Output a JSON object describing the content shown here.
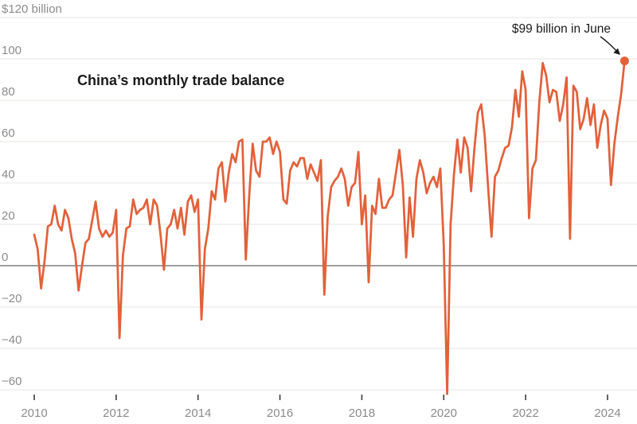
{
  "title": "China’s monthly trade balance",
  "annotation": {
    "text": "$99 billion in June",
    "points_to": {
      "month": "2024-06",
      "value": 99
    }
  },
  "colors": {
    "line": "#E2613B",
    "endpoint_dot": "#E2613B",
    "grid": "#E5E4E2",
    "zero_line": "#3B3B3B",
    "axis_text": "#8B8B8B",
    "tick_mark": "#3B3B3B",
    "title_text": "#1A1A1A",
    "annotation_text": "#1A1A1A",
    "background": "#FFFFFF"
  },
  "chart_data": {
    "type": "line",
    "title": "China’s monthly trade balance",
    "unit": "USD billion, monthly",
    "x_start": "2010-01",
    "x_end": "2024-06",
    "xlabel": "",
    "ylabel": "$ billion",
    "ylim": [
      -68,
      124
    ],
    "grid": "horizontal",
    "legend": "none",
    "y_ticks": [
      {
        "value": 120,
        "label": "$120 billion"
      },
      {
        "value": 100,
        "label": "100"
      },
      {
        "value": 80,
        "label": "80"
      },
      {
        "value": 60,
        "label": "60"
      },
      {
        "value": 40,
        "label": "40"
      },
      {
        "value": 20,
        "label": "20"
      },
      {
        "value": 0,
        "label": "0"
      },
      {
        "value": -20,
        "label": "−20"
      },
      {
        "value": -40,
        "label": "−40"
      },
      {
        "value": -60,
        "label": "−60"
      }
    ],
    "x_ticks": [
      {
        "year": 2010,
        "label": "2010"
      },
      {
        "year": 2012,
        "label": "2012"
      },
      {
        "year": 2014,
        "label": "2014"
      },
      {
        "year": 2016,
        "label": "2016"
      },
      {
        "year": 2018,
        "label": "2018"
      },
      {
        "year": 2020,
        "label": "2020"
      },
      {
        "year": 2022,
        "label": "2022"
      },
      {
        "year": 2024,
        "label": "2024"
      }
    ],
    "annotation": {
      "text": "$99 billion in June",
      "x": "2024-06",
      "y": 99
    },
    "series": [
      {
        "name": "China monthly trade balance ($ billion)",
        "color": "#E2613B",
        "start": "2010-01",
        "frequency": "monthly",
        "values": [
          15,
          8,
          -11,
          2,
          19,
          20,
          29,
          20,
          17,
          27,
          23,
          13,
          6,
          -12,
          0,
          11,
          13,
          22,
          31,
          18,
          14,
          17,
          14,
          16,
          27,
          -35,
          5,
          18,
          19,
          32,
          25,
          27,
          28,
          32,
          20,
          32,
          29,
          15,
          -2,
          18,
          20,
          27,
          18,
          28,
          15,
          31,
          34,
          26,
          32,
          -26,
          8,
          18,
          36,
          32,
          47,
          50,
          31,
          45,
          54,
          50,
          60,
          61,
          3,
          34,
          59,
          46,
          43,
          60,
          60,
          62,
          54,
          60,
          55,
          32,
          30,
          46,
          50,
          48,
          52,
          52,
          42,
          49,
          45,
          41,
          51,
          -14,
          24,
          38,
          41,
          43,
          47,
          42,
          29,
          38,
          40,
          55,
          20,
          34,
          -8,
          29,
          25,
          42,
          28,
          28,
          32,
          34,
          45,
          56,
          39,
          4,
          33,
          14,
          42,
          51,
          45,
          35,
          40,
          43,
          38,
          47,
          10,
          -62,
          20,
          44,
          61,
          45,
          62,
          57,
          36,
          57,
          74,
          78,
          63,
          38,
          14,
          43,
          46,
          52,
          57,
          58,
          67,
          85,
          72,
          94,
          85,
          23,
          47,
          51,
          79,
          98,
          92,
          79,
          85,
          84,
          70,
          78,
          91,
          13,
          87,
          84,
          66,
          71,
          81,
          68,
          78,
          57,
          68,
          75,
          71,
          39,
          59,
          72,
          83,
          99
        ]
      }
    ]
  }
}
